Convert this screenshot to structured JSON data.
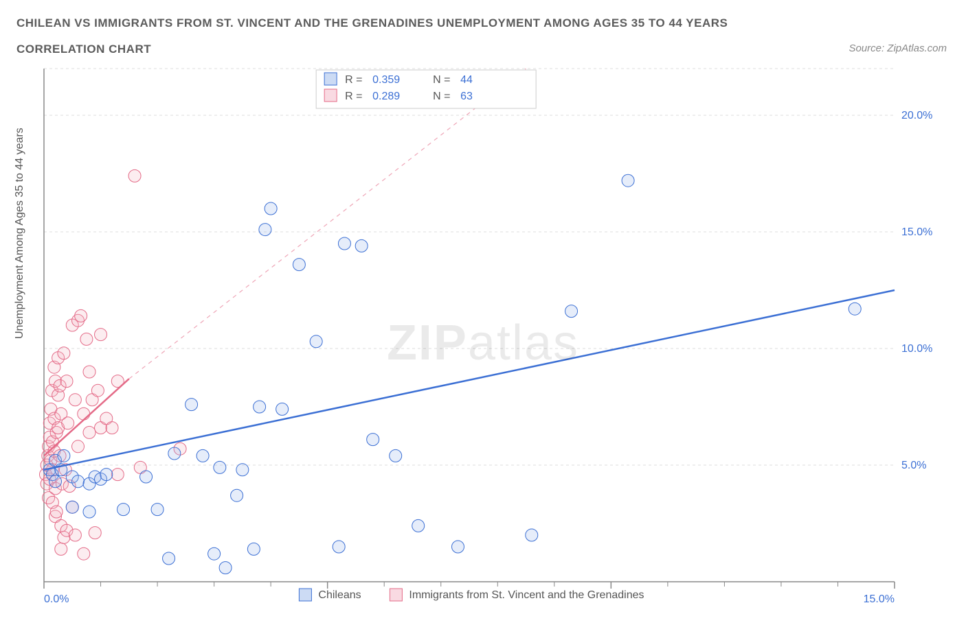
{
  "title_line1": "CHILEAN VS IMMIGRANTS FROM ST. VINCENT AND THE GRENADINES UNEMPLOYMENT AMONG AGES 35 TO 44 YEARS",
  "title_line2": "CORRELATION CHART",
  "source_text": "Source: ZipAtlas.com",
  "ylabel": "Unemployment Among Ages 35 to 44 years",
  "watermark_zip": "ZIP",
  "watermark_atlas": "atlas",
  "chart": {
    "type": "scatter",
    "background_color": "#ffffff",
    "grid_color": "#dddddd",
    "grid_dash": "4,4",
    "axis_color": "#888888",
    "xlim": [
      0,
      15
    ],
    "ylim": [
      0,
      22
    ],
    "x_ticks": [
      0,
      5,
      10,
      15
    ],
    "x_tick_labels": [
      "0.0%",
      "",
      "",
      "15.0%"
    ],
    "x_tick_color": "#3b6fd4",
    "x_minor_ticks": [
      1,
      2,
      3,
      4,
      6,
      7,
      8,
      9,
      11,
      12,
      13,
      14
    ],
    "y_ticks_right": [
      5,
      10,
      15,
      20
    ],
    "y_tick_labels": [
      "5.0%",
      "10.0%",
      "15.0%",
      "20.0%"
    ],
    "y_tick_color": "#3b6fd4",
    "tick_fontsize": 16,
    "marker_radius": 9,
    "marker_stroke_width": 1,
    "marker_fill_opacity": 0.25,
    "series": [
      {
        "name": "Chileans",
        "color_stroke": "#3b6fd4",
        "color_fill": "#9ab8ea",
        "trend_solid": true,
        "trend_width": 2.5,
        "trend_x1": 0,
        "trend_y1": 4.8,
        "trend_x2": 15,
        "trend_y2": 12.5,
        "R": "0.359",
        "N": "44",
        "points": [
          [
            0.1,
            4.8
          ],
          [
            0.15,
            4.6
          ],
          [
            0.2,
            5.2
          ],
          [
            0.2,
            4.3
          ],
          [
            0.3,
            4.8
          ],
          [
            0.35,
            5.4
          ],
          [
            0.5,
            4.5
          ],
          [
            0.6,
            4.3
          ],
          [
            0.8,
            4.2
          ],
          [
            0.9,
            4.5
          ],
          [
            1.0,
            4.4
          ],
          [
            1.1,
            4.6
          ],
          [
            0.5,
            3.2
          ],
          [
            0.8,
            3.0
          ],
          [
            1.4,
            3.1
          ],
          [
            1.8,
            4.5
          ],
          [
            2.0,
            3.1
          ],
          [
            2.2,
            1.0
          ],
          [
            2.3,
            5.5
          ],
          [
            2.6,
            7.6
          ],
          [
            2.8,
            5.4
          ],
          [
            3.0,
            1.2
          ],
          [
            3.1,
            4.9
          ],
          [
            3.2,
            0.6
          ],
          [
            3.4,
            3.7
          ],
          [
            3.5,
            4.8
          ],
          [
            3.7,
            1.4
          ],
          [
            3.8,
            7.5
          ],
          [
            3.9,
            15.1
          ],
          [
            4.0,
            16.0
          ],
          [
            4.2,
            7.4
          ],
          [
            4.5,
            13.6
          ],
          [
            4.8,
            10.3
          ],
          [
            5.2,
            1.5
          ],
          [
            5.3,
            14.5
          ],
          [
            5.6,
            14.4
          ],
          [
            5.8,
            6.1
          ],
          [
            6.2,
            5.4
          ],
          [
            6.6,
            2.4
          ],
          [
            7.3,
            1.5
          ],
          [
            8.6,
            2.0
          ],
          [
            9.3,
            11.6
          ],
          [
            10.3,
            17.2
          ],
          [
            14.3,
            11.7
          ]
        ]
      },
      {
        "name": "Immigrants from St. Vincent and the Grenadines",
        "color_stroke": "#e46a87",
        "color_fill": "#f3b6c5",
        "trend_solid": false,
        "trend_width": 2.5,
        "trend_x1": 0,
        "trend_y1": 5.4,
        "trend_x2": 1.5,
        "trend_y2": 8.7,
        "trend_dash_x1": 1.5,
        "trend_dash_y1": 8.7,
        "trend_dash_x2": 8.5,
        "trend_dash_y2": 22,
        "R": "0.289",
        "N": "63",
        "points": [
          [
            0.03,
            4.6
          ],
          [
            0.05,
            5.0
          ],
          [
            0.05,
            4.2
          ],
          [
            0.07,
            5.4
          ],
          [
            0.08,
            5.8
          ],
          [
            0.08,
            3.6
          ],
          [
            0.1,
            6.2
          ],
          [
            0.1,
            6.8
          ],
          [
            0.1,
            4.4
          ],
          [
            0.12,
            5.2
          ],
          [
            0.12,
            7.4
          ],
          [
            0.14,
            8.2
          ],
          [
            0.15,
            6.0
          ],
          [
            0.15,
            4.8
          ],
          [
            0.15,
            3.4
          ],
          [
            0.18,
            9.2
          ],
          [
            0.18,
            5.6
          ],
          [
            0.18,
            7.0
          ],
          [
            0.2,
            8.6
          ],
          [
            0.2,
            4.0
          ],
          [
            0.2,
            2.8
          ],
          [
            0.22,
            3.0
          ],
          [
            0.22,
            6.4
          ],
          [
            0.25,
            6.6
          ],
          [
            0.25,
            8.0
          ],
          [
            0.25,
            9.6
          ],
          [
            0.28,
            5.4
          ],
          [
            0.28,
            8.4
          ],
          [
            0.3,
            2.4
          ],
          [
            0.3,
            1.4
          ],
          [
            0.3,
            7.2
          ],
          [
            0.32,
            4.2
          ],
          [
            0.35,
            1.9
          ],
          [
            0.35,
            9.8
          ],
          [
            0.38,
            4.8
          ],
          [
            0.4,
            2.2
          ],
          [
            0.4,
            8.6
          ],
          [
            0.42,
            6.8
          ],
          [
            0.45,
            4.1
          ],
          [
            0.5,
            3.2
          ],
          [
            0.5,
            11.0
          ],
          [
            0.55,
            7.8
          ],
          [
            0.55,
            2.0
          ],
          [
            0.6,
            11.2
          ],
          [
            0.6,
            5.8
          ],
          [
            0.65,
            11.4
          ],
          [
            0.7,
            7.2
          ],
          [
            0.7,
            1.2
          ],
          [
            0.75,
            10.4
          ],
          [
            0.8,
            9.0
          ],
          [
            0.8,
            6.4
          ],
          [
            0.85,
            7.8
          ],
          [
            0.9,
            2.1
          ],
          [
            0.95,
            8.2
          ],
          [
            1.0,
            6.6
          ],
          [
            1.0,
            10.6
          ],
          [
            1.1,
            7.0
          ],
          [
            1.2,
            6.6
          ],
          [
            1.3,
            8.6
          ],
          [
            1.3,
            4.6
          ],
          [
            1.6,
            17.4
          ],
          [
            1.7,
            4.9
          ],
          [
            2.4,
            5.7
          ]
        ]
      }
    ],
    "legend_box": {
      "bg": "#ffffff",
      "border": "#cccccc",
      "text_color": "#555555",
      "value_color": "#3b6fd4",
      "fontsize": 16
    },
    "bottom_legend": {
      "items": [
        {
          "label": "Chileans",
          "swatch_fill": "#9ab8ea",
          "swatch_stroke": "#3b6fd4"
        },
        {
          "label": "Immigrants from St. Vincent and the Grenadines",
          "swatch_fill": "#f3b6c5",
          "swatch_stroke": "#e46a87"
        }
      ],
      "text_color": "#555555",
      "fontsize": 16
    }
  }
}
